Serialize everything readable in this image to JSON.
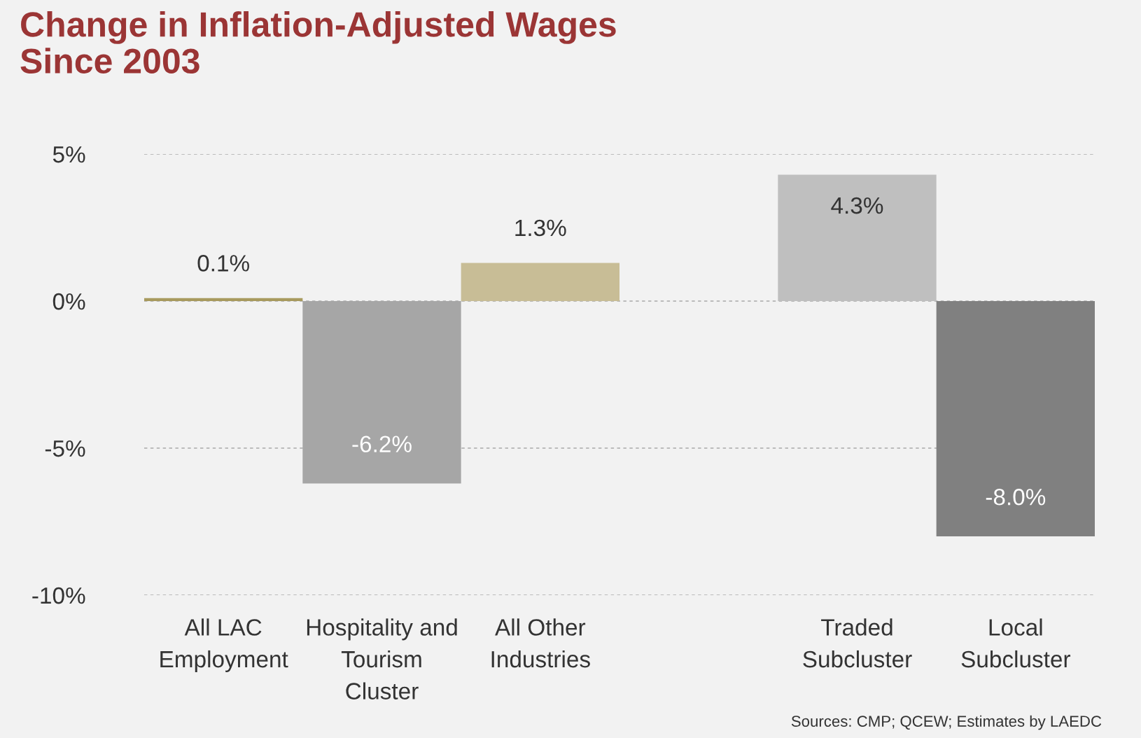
{
  "chart_data": {
    "type": "bar",
    "title": "Change in Inflation-Adjusted Wages\nSince 2003",
    "categories": [
      "All LAC\nEmployment",
      "Hospitality and\nTourism\nCluster",
      "All Other\nIndustries",
      null,
      "Traded\nSubcluster",
      "Local\nSubcluster"
    ],
    "values": [
      0.1,
      -6.2,
      1.3,
      null,
      4.3,
      -8.0
    ],
    "colors": [
      "#a89a5e",
      "#a6a6a6",
      "#c8bd96",
      "#ffffff",
      "#bfbfbf",
      "#808080"
    ],
    "value_labels": [
      "0.1%",
      "-6.2%",
      "1.3%",
      null,
      "4.3%",
      "-8.0%"
    ],
    "ylim": [
      -10,
      5
    ],
    "yticks": [
      {
        "value": 5,
        "label": "5%"
      },
      {
        "value": 0,
        "label": "0%"
      },
      {
        "value": -5,
        "label": "-5%"
      },
      {
        "value": -10,
        "label": "-10%"
      }
    ],
    "grid": "y",
    "annotations": [
      "Sources: CMP; QCEW; Estimates by LAEDC"
    ]
  }
}
